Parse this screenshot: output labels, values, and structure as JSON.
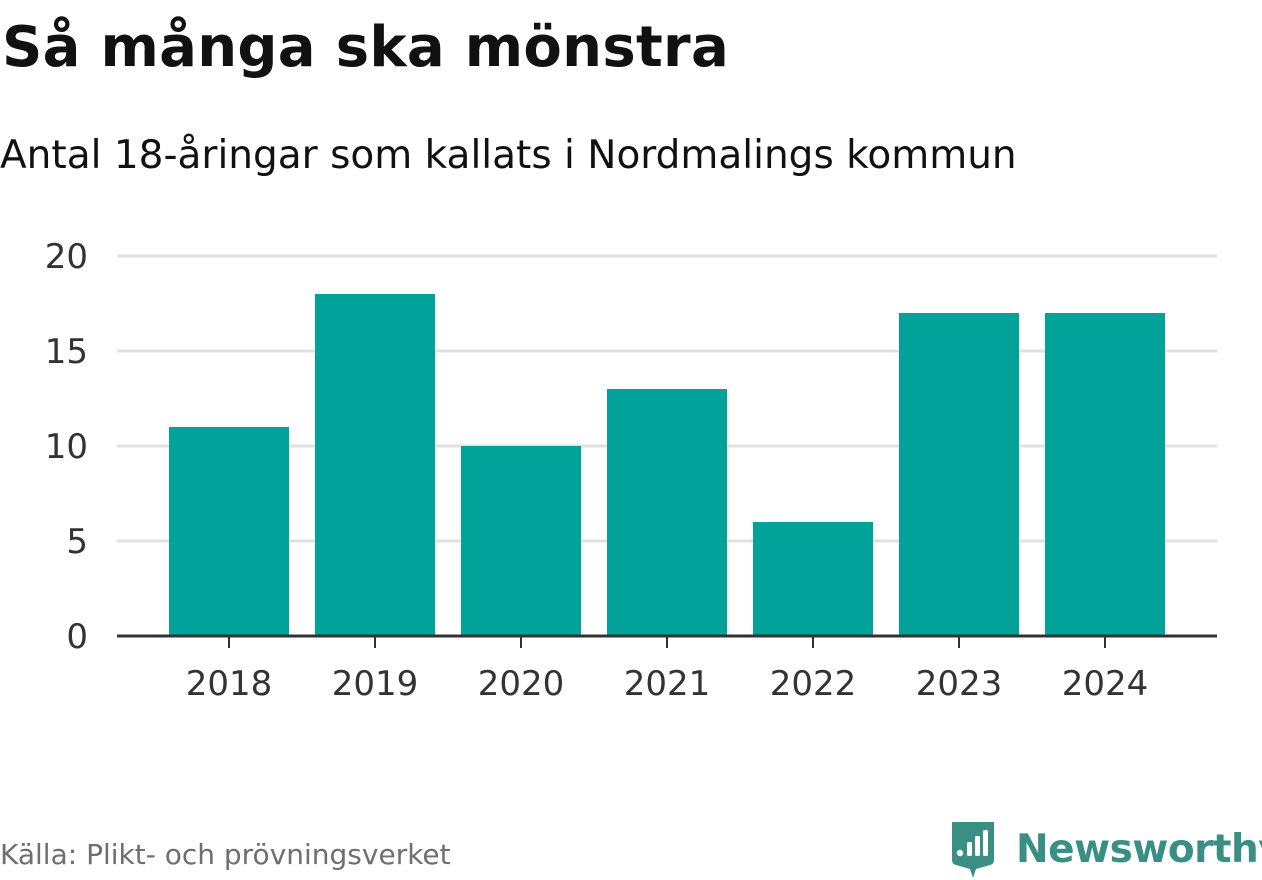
{
  "header": {
    "title": "Så många ska mönstra",
    "subtitle": "Antal 18-åringar som kallats i Nordmalings kommun"
  },
  "footer": {
    "source": "Källa: Plikt- och prövningsverket",
    "brand": "Newsworthy",
    "brand_icon": "newsworthy-logo-icon"
  },
  "colors": {
    "bar": "#00A29A",
    "grid": "#e1e1e1",
    "axis": "#333333",
    "tick_text": "#333333",
    "brand": "#3a8f85"
  },
  "chart_data": {
    "type": "bar",
    "title": "Så många ska mönstra",
    "subtitle": "Antal 18-åringar som kallats i Nordmalings kommun",
    "xlabel": "",
    "ylabel": "",
    "categories": [
      "2018",
      "2019",
      "2020",
      "2021",
      "2022",
      "2023",
      "2024"
    ],
    "values": [
      11,
      18,
      10,
      13,
      6,
      17,
      17
    ],
    "ylim": [
      0,
      20
    ],
    "yticks": [
      0,
      5,
      10,
      15,
      20
    ],
    "grid": true,
    "legend": "none"
  }
}
